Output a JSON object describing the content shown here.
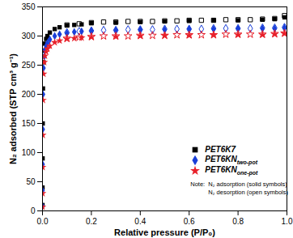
{
  "chart_data": {
    "type": "scatter",
    "xlabel": "Relative pressure (P/P₀)",
    "ylabel": "N₂ adsorbed (STP cm³ g⁻¹)",
    "xlim": [
      0,
      1
    ],
    "ylim": [
      0,
      350
    ],
    "xticks": [
      {
        "value": 0,
        "label": "0.0"
      },
      0.2,
      0.4,
      0.6,
      0.8,
      {
        "value": 1,
        "label": "1.0"
      }
    ],
    "yticks": [
      0,
      50,
      100,
      150,
      200,
      250,
      300,
      350
    ],
    "grid": false,
    "legend": "lower right",
    "annotations": {
      "label": "Note:",
      "lines": [
        "N₂ adsorption (solid symbols)",
        "N₂ desorption (open symbols)"
      ]
    },
    "series": [
      {
        "name": "PET6K7",
        "subscript": "",
        "color": "#000000",
        "marker": "square",
        "adsorption": {
          "x": [
            5e-05,
            0.0002,
            0.0005,
            0.001,
            0.002,
            0.004,
            0.007,
            0.01,
            0.015,
            0.02,
            0.03,
            0.05,
            0.07,
            0.1,
            0.13,
            0.16,
            0.2,
            0.3,
            0.4,
            0.5,
            0.6,
            0.7,
            0.8,
            0.9,
            0.95,
            0.99
          ],
          "values": [
            10,
            40,
            90,
            150,
            210,
            255,
            275,
            287,
            295,
            300,
            306,
            312,
            315,
            318,
            319,
            320,
            322,
            323,
            324,
            325,
            326,
            327,
            327,
            328,
            329,
            332
          ]
        },
        "desorption": {
          "x": [
            0.99,
            0.95,
            0.9,
            0.85,
            0.8,
            0.75,
            0.7,
            0.65,
            0.6,
            0.55,
            0.5,
            0.45,
            0.4,
            0.35,
            0.3,
            0.25,
            0.2,
            0.15,
            0.1
          ],
          "values": [
            335,
            330,
            329,
            328,
            328,
            328,
            327,
            327,
            327,
            326,
            326,
            325,
            325,
            325,
            324,
            324,
            323,
            321,
            319
          ]
        }
      },
      {
        "name": "PET6KN",
        "subscript": "two-pot",
        "color": "#1a3fd9",
        "marker": "diamond",
        "adsorption": {
          "x": [
            5e-05,
            0.0002,
            0.0005,
            0.001,
            0.002,
            0.004,
            0.007,
            0.01,
            0.015,
            0.02,
            0.03,
            0.05,
            0.07,
            0.1,
            0.13,
            0.16,
            0.2,
            0.3,
            0.4,
            0.5,
            0.6,
            0.7,
            0.8,
            0.9,
            0.95,
            0.99
          ],
          "values": [
            8,
            35,
            80,
            140,
            200,
            245,
            265,
            276,
            283,
            288,
            294,
            300,
            303,
            305,
            307,
            308,
            309,
            310,
            311,
            311,
            312,
            312,
            313,
            313,
            313,
            314
          ]
        },
        "desorption": {
          "x": [
            0.99,
            0.95,
            0.9,
            0.85,
            0.8,
            0.75,
            0.7,
            0.65,
            0.6,
            0.55,
            0.5,
            0.45,
            0.4,
            0.35,
            0.3,
            0.25,
            0.2,
            0.15,
            0.1
          ],
          "values": [
            315,
            314,
            314,
            313,
            313,
            313,
            313,
            312,
            312,
            312,
            312,
            311,
            311,
            311,
            310,
            310,
            309,
            308,
            306
          ]
        }
      },
      {
        "name": "PET6KN",
        "subscript": "one-pot",
        "color": "#e8202a",
        "marker": "star",
        "adsorption": {
          "x": [
            5e-05,
            0.0002,
            0.0005,
            0.001,
            0.002,
            0.004,
            0.007,
            0.01,
            0.015,
            0.02,
            0.03,
            0.05,
            0.07,
            0.1,
            0.13,
            0.16,
            0.2,
            0.3,
            0.4,
            0.5,
            0.6,
            0.7,
            0.8,
            0.9,
            0.95,
            0.99
          ],
          "values": [
            7,
            30,
            75,
            130,
            190,
            235,
            255,
            266,
            273,
            278,
            283,
            289,
            292,
            295,
            296,
            297,
            298,
            299,
            300,
            301,
            301,
            302,
            302,
            302,
            303,
            304
          ]
        },
        "desorption": {
          "x": [
            0.99,
            0.95,
            0.9,
            0.85,
            0.8,
            0.75,
            0.7,
            0.65,
            0.6,
            0.55,
            0.5,
            0.45,
            0.4,
            0.35,
            0.3,
            0.25,
            0.2,
            0.15,
            0.1
          ],
          "values": [
            305,
            304,
            303,
            303,
            303,
            303,
            302,
            302,
            302,
            302,
            301,
            301,
            301,
            300,
            300,
            300,
            299,
            298,
            296
          ]
        }
      }
    ]
  }
}
